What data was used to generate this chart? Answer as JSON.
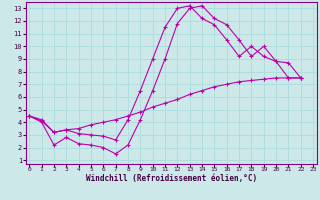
{
  "bg_color": "#cce8e8",
  "grid_color": "#aadddd",
  "line_color": "#bb00aa",
  "xlim": [
    -0.3,
    23.3
  ],
  "ylim": [
    0.7,
    13.5
  ],
  "xticks": [
    0,
    1,
    2,
    3,
    4,
    5,
    6,
    7,
    8,
    9,
    10,
    11,
    12,
    13,
    14,
    15,
    16,
    17,
    18,
    19,
    20,
    21,
    22,
    23
  ],
  "yticks": [
    1,
    2,
    3,
    4,
    5,
    6,
    7,
    8,
    9,
    10,
    11,
    12,
    13
  ],
  "line1_x": [
    0,
    1,
    2,
    3,
    4,
    5,
    6,
    7,
    8,
    9,
    10,
    11,
    12,
    13,
    14,
    15,
    16,
    17,
    18,
    19,
    20,
    21,
    22
  ],
  "line1_y": [
    4.5,
    4.0,
    2.2,
    2.8,
    2.3,
    2.2,
    2.0,
    1.5,
    2.2,
    4.2,
    6.5,
    9.0,
    11.8,
    13.0,
    13.2,
    12.2,
    11.7,
    10.5,
    9.2,
    10.0,
    8.8,
    8.7,
    7.5
  ],
  "line2_x": [
    0,
    1,
    2,
    3,
    4,
    5,
    6,
    7,
    8,
    9,
    10,
    11,
    12,
    13,
    14,
    15,
    16,
    17,
    18,
    19,
    20,
    21,
    22
  ],
  "line2_y": [
    4.5,
    4.1,
    3.2,
    3.4,
    3.1,
    3.0,
    2.9,
    2.6,
    4.2,
    6.5,
    9.0,
    11.5,
    13.0,
    13.2,
    12.2,
    11.7,
    10.5,
    9.2,
    10.0,
    9.2,
    8.8,
    7.5,
    7.5
  ],
  "line3_x": [
    0,
    1,
    2,
    3,
    4,
    5,
    6,
    7,
    8,
    9,
    10,
    11,
    12,
    13,
    14,
    15,
    16,
    17,
    18,
    19,
    20,
    21,
    22
  ],
  "line3_y": [
    4.5,
    4.2,
    3.2,
    3.4,
    3.5,
    3.8,
    4.0,
    4.2,
    4.5,
    4.8,
    5.2,
    5.5,
    5.8,
    6.2,
    6.5,
    6.8,
    7.0,
    7.2,
    7.3,
    7.4,
    7.5,
    7.5,
    7.5
  ],
  "xlabel": "Windchill (Refroidissement éolien,°C)",
  "marker": "+",
  "markersize": 3.5,
  "linewidth": 0.8
}
